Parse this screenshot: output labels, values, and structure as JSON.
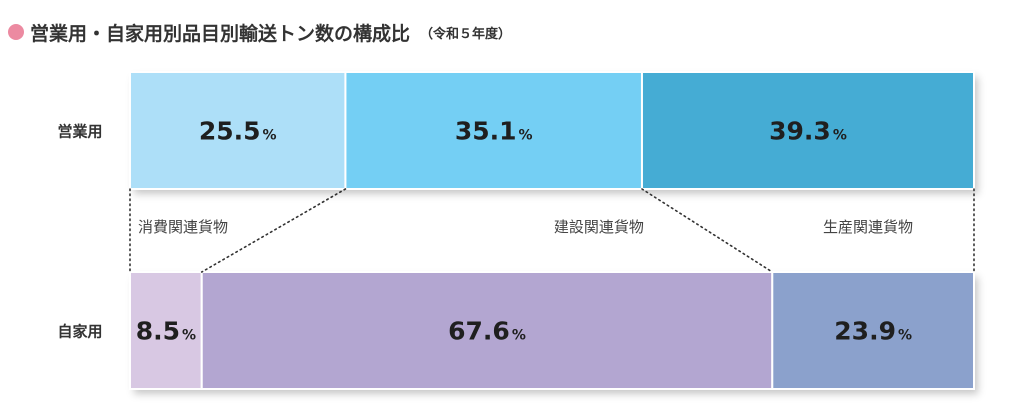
{
  "header": {
    "title": "営業用・自家用別品目別輸送トン数の構成比",
    "subtitle": "（令和５年度）"
  },
  "chart_data": {
    "type": "bar",
    "orientation": "horizontal-stacked-100",
    "title": "営業用・自家用別品目別輸送トン数の構成比",
    "subtitle": "（令和５年度）",
    "unit": "%",
    "categories": [
      "営業用",
      "自家用"
    ],
    "series": [
      {
        "name": "消費関連貨物",
        "values": [
          25.5,
          8.5
        ]
      },
      {
        "name": "建設関連貨物",
        "values": [
          35.1,
          67.6
        ]
      },
      {
        "name": "生産関連貨物",
        "values": [
          39.3,
          23.9
        ]
      }
    ],
    "colors": [
      [
        "#addff8",
        "#74cff4",
        "#45acd4"
      ],
      [
        "#d8c8e3",
        "#b3a6d1",
        "#8ba1cc"
      ]
    ],
    "labels": [
      "25.5",
      "35.1",
      "39.3",
      "8.5",
      "67.6",
      "23.9"
    ],
    "legend": "between-bars"
  }
}
